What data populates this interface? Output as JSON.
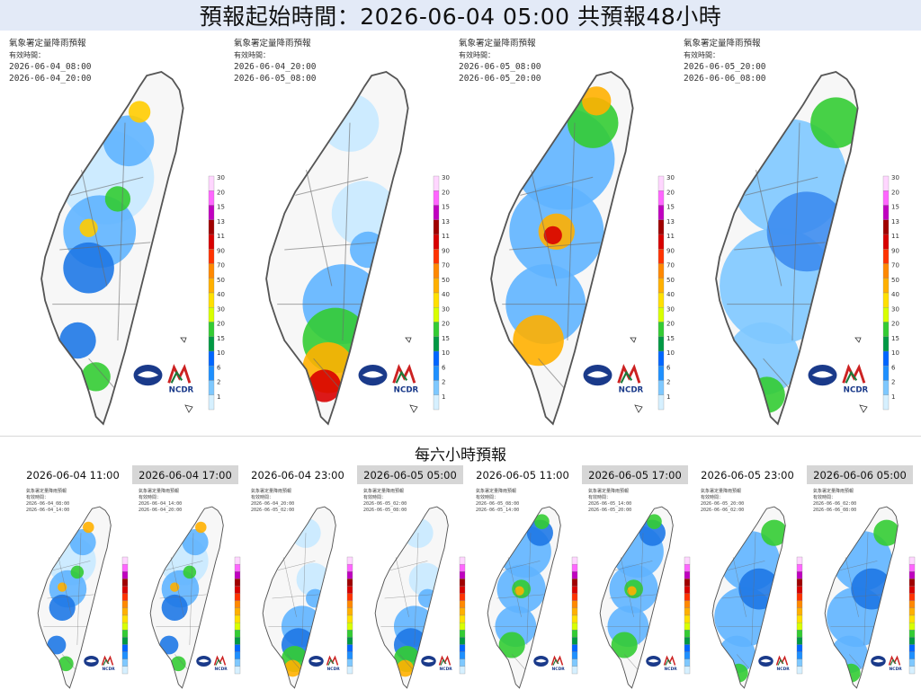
{
  "header": {
    "title": "預報起始時間：2026-06-04 05:00  共預報48小時"
  },
  "legend": {
    "values": [
      "300",
      "200",
      "150",
      "130",
      "110",
      "90",
      "70",
      "50",
      "40",
      "30",
      "20",
      "15",
      "10",
      "6",
      "2",
      "1"
    ],
    "colors": [
      "#ffd6ff",
      "#ff66ff",
      "#c000c0",
      "#a00000",
      "#d80000",
      "#ff3300",
      "#ff8800",
      "#ffb000",
      "#ffe000",
      "#d8ff00",
      "#33cc33",
      "#009944",
      "#0066ff",
      "#1e90ff",
      "#7ec8ff",
      "#d6f0ff"
    ]
  },
  "logos": {
    "agency_text": "NCDR"
  },
  "big_panels": [
    {
      "agency": "氣象署定量降雨預報",
      "valid_label": "有效時間：",
      "start": "2026-06-04_08:00",
      "end": "2026-06-04_20:00"
    },
    {
      "agency": "氣象署定量降雨預報",
      "valid_label": "有效時間：",
      "start": "2026-06-04_20:00",
      "end": "2026-06-05_08:00"
    },
    {
      "agency": "氣象署定量降雨預報",
      "valid_label": "有效時間：",
      "start": "2026-06-05_08:00",
      "end": "2026-06-05_20:00"
    },
    {
      "agency": "氣象署定量降雨預報",
      "valid_label": "有效時間：",
      "start": "2026-06-05_20:00",
      "end": "2026-06-06_08:00"
    }
  ],
  "six_hour": {
    "title": "每六小時預報",
    "panels": [
      {
        "label": "2026-06-04 11:00",
        "agency": "氣象署定量降雨預報",
        "valid_label": "有效時間：",
        "start": "2026-06-04_08:00",
        "end": "2026-06-04_14:00"
      },
      {
        "label": "2026-06-04 17:00",
        "agency": "氣象署定量降雨預報",
        "valid_label": "有效時間：",
        "start": "2026-06-04_14:00",
        "end": "2026-06-04_20:00"
      },
      {
        "label": "2026-06-04 23:00",
        "agency": "氣象署定量降雨預報",
        "valid_label": "有效時間：",
        "start": "2026-06-04_20:00",
        "end": "2026-06-05_02:00"
      },
      {
        "label": "2026-06-05 05:00",
        "agency": "氣象署定量降雨預報",
        "valid_label": "有效時間：",
        "start": "2026-06-05_02:00",
        "end": "2026-06-05_08:00"
      },
      {
        "label": "2026-06-05 11:00",
        "agency": "氣象署定量降雨預報",
        "valid_label": "有效時間：",
        "start": "2026-06-05_08:00",
        "end": "2026-06-05_14:00"
      },
      {
        "label": "2026-06-05 17:00",
        "agency": "氣象署定量降雨預報",
        "valid_label": "有效時間：",
        "start": "2026-06-05_14:00",
        "end": "2026-06-05_20:00"
      },
      {
        "label": "2026-06-05 23:00",
        "agency": "氣象署定量降雨預報",
        "valid_label": "有效時間：",
        "start": "2026-06-05_20:00",
        "end": "2026-06-06_02:00"
      },
      {
        "label": "2026-06-06 05:00",
        "agency": "氣象署定量降雨預報",
        "valid_label": "有效時間：",
        "start": "2026-06-06_02:00",
        "end": "2026-06-06_08:00"
      }
    ]
  }
}
